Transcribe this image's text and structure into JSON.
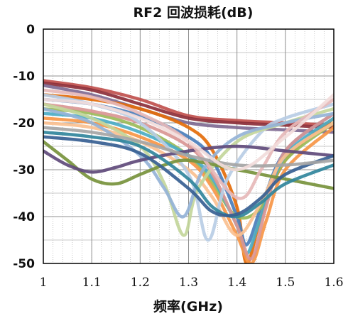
{
  "chart_data": {
    "type": "line",
    "title": "RF2 回波损耗(dB)",
    "xlabel": "频率(GHz)",
    "ylabel": "",
    "xlim": [
      1.0,
      1.6
    ],
    "ylim": [
      -50,
      0
    ],
    "x_ticks": [
      "1",
      "1.1",
      "1.2",
      "1.3",
      "1.4",
      "1.5",
      "1.6"
    ],
    "y_ticks": [
      "0",
      "-10",
      "-20",
      "-30",
      "-40",
      "-50"
    ],
    "grid": "major and minor, dotted",
    "legend": "none",
    "series": [
      {
        "color": "#c0504d",
        "x": [
          1.0,
          1.1,
          1.2,
          1.3,
          1.4,
          1.5,
          1.6
        ],
        "y": [
          -11,
          -12.5,
          -15,
          -18.5,
          -19.5,
          -20,
          -20.5
        ]
      },
      {
        "color": "#8c2f39",
        "x": [
          1.0,
          1.1,
          1.2,
          1.3,
          1.4,
          1.5,
          1.6
        ],
        "y": [
          -11.5,
          -13,
          -16,
          -19,
          -20,
          -20.5,
          -21
        ]
      },
      {
        "color": "#7f6a93",
        "x": [
          1.0,
          1.1,
          1.2,
          1.3,
          1.4,
          1.5,
          1.6
        ],
        "y": [
          -12,
          -14,
          -17,
          -20,
          -21,
          -21.5,
          -22
        ]
      },
      {
        "color": "#e46c0a",
        "x": [
          1.0,
          1.1,
          1.2,
          1.3,
          1.35,
          1.4,
          1.42,
          1.45,
          1.5,
          1.6
        ],
        "y": [
          -14,
          -15,
          -17,
          -21,
          -26,
          -38,
          -50,
          -40,
          -28,
          -19
        ]
      },
      {
        "color": "#4a7ebb",
        "x": [
          1.0,
          1.1,
          1.2,
          1.3,
          1.35,
          1.4,
          1.42,
          1.45,
          1.5,
          1.6
        ],
        "y": [
          -15,
          -16,
          -18.5,
          -23,
          -28,
          -40,
          -46,
          -38,
          -26,
          -18
        ]
      },
      {
        "color": "#9bbb59",
        "x": [
          1.0,
          1.1,
          1.2,
          1.3,
          1.35,
          1.4,
          1.45,
          1.5,
          1.6
        ],
        "y": [
          -17,
          -18,
          -21,
          -27,
          -33,
          -40,
          -38,
          -28,
          -20
        ]
      },
      {
        "color": "#4bacc6",
        "x": [
          1.0,
          1.1,
          1.2,
          1.3,
          1.35,
          1.4,
          1.42,
          1.45,
          1.5,
          1.6
        ],
        "y": [
          -18,
          -19,
          -22,
          -27,
          -32,
          -42,
          -48,
          -40,
          -27,
          -19
        ]
      },
      {
        "color": "#f79646",
        "x": [
          1.0,
          1.1,
          1.2,
          1.3,
          1.35,
          1.4,
          1.43,
          1.46,
          1.5,
          1.6
        ],
        "y": [
          -19,
          -20,
          -23,
          -28,
          -34,
          -44,
          -50,
          -41,
          -30,
          -21
        ]
      },
      {
        "color": "#d99694",
        "x": [
          1.0,
          1.1,
          1.2,
          1.3,
          1.35,
          1.4,
          1.43,
          1.46,
          1.5,
          1.6
        ],
        "y": [
          -16,
          -17.5,
          -20,
          -25,
          -31,
          -42,
          -49,
          -38,
          -26,
          -18
        ]
      },
      {
        "color": "#fac090",
        "x": [
          1.0,
          1.1,
          1.2,
          1.3,
          1.35,
          1.4,
          1.45,
          1.5,
          1.6
        ],
        "y": [
          -20,
          -21,
          -24,
          -30,
          -36,
          -44,
          -37,
          -27,
          -20
        ]
      },
      {
        "color": "#b9cde5",
        "x": [
          1.0,
          1.1,
          1.2,
          1.3,
          1.34,
          1.38,
          1.45,
          1.5,
          1.6
        ],
        "y": [
          -14,
          -16,
          -20,
          -31,
          -45,
          -32,
          -22,
          -19,
          -16
        ]
      },
      {
        "color": "#c3d69b",
        "x": [
          1.0,
          1.1,
          1.2,
          1.25,
          1.29,
          1.32,
          1.4,
          1.5,
          1.6
        ],
        "y": [
          -16,
          -19,
          -25,
          -33,
          -44,
          -34,
          -24,
          -20,
          -17
        ]
      },
      {
        "color": "#95b3d7",
        "x": [
          1.0,
          1.1,
          1.2,
          1.25,
          1.29,
          1.33,
          1.4,
          1.5,
          1.6
        ],
        "y": [
          -17,
          -20,
          -27,
          -34,
          -40,
          -30,
          -23,
          -20,
          -18
        ]
      },
      {
        "color": "#77933c",
        "x": [
          1.0,
          1.05,
          1.1,
          1.15,
          1.2,
          1.25,
          1.3,
          1.4,
          1.5,
          1.6
        ],
        "y": [
          -24,
          -28,
          -32,
          -33,
          -31,
          -29,
          -28,
          -30,
          -32,
          -34
        ]
      },
      {
        "color": "#604a7b",
        "x": [
          1.0,
          1.05,
          1.1,
          1.15,
          1.2,
          1.3,
          1.4,
          1.5,
          1.6
        ],
        "y": [
          -26,
          -29,
          -30.5,
          -29.5,
          -28,
          -26,
          -25,
          -26,
          -27
        ]
      },
      {
        "color": "#31859c",
        "x": [
          1.0,
          1.1,
          1.2,
          1.3,
          1.35,
          1.4,
          1.45,
          1.5,
          1.6
        ],
        "y": [
          -22,
          -23,
          -25,
          -32,
          -38,
          -40,
          -37,
          -33,
          -29
        ]
      },
      {
        "color": "#376092",
        "x": [
          1.0,
          1.1,
          1.2,
          1.3,
          1.35,
          1.4,
          1.45,
          1.5,
          1.6
        ],
        "y": [
          -23,
          -24,
          -26.5,
          -34,
          -39,
          -39.5,
          -36,
          -31,
          -27
        ]
      },
      {
        "color": "#e6b9b8",
        "x": [
          1.0,
          1.1,
          1.2,
          1.3,
          1.4,
          1.45,
          1.5,
          1.6
        ],
        "y": [
          -13,
          -14.5,
          -18,
          -24,
          -36,
          -30,
          -22,
          -15
        ]
      },
      {
        "color": "#a5a5a5",
        "x": [
          1.0,
          1.1,
          1.2,
          1.3,
          1.4,
          1.5,
          1.6
        ],
        "y": [
          -21,
          -22,
          -24,
          -27,
          -29,
          -29,
          -28
        ]
      },
      {
        "color": "#f2dcdb",
        "x": [
          1.0,
          1.1,
          1.2,
          1.3,
          1.4,
          1.5,
          1.6
        ],
        "y": [
          -15,
          -16,
          -19,
          -24,
          -30,
          -23,
          -14
        ]
      }
    ]
  }
}
